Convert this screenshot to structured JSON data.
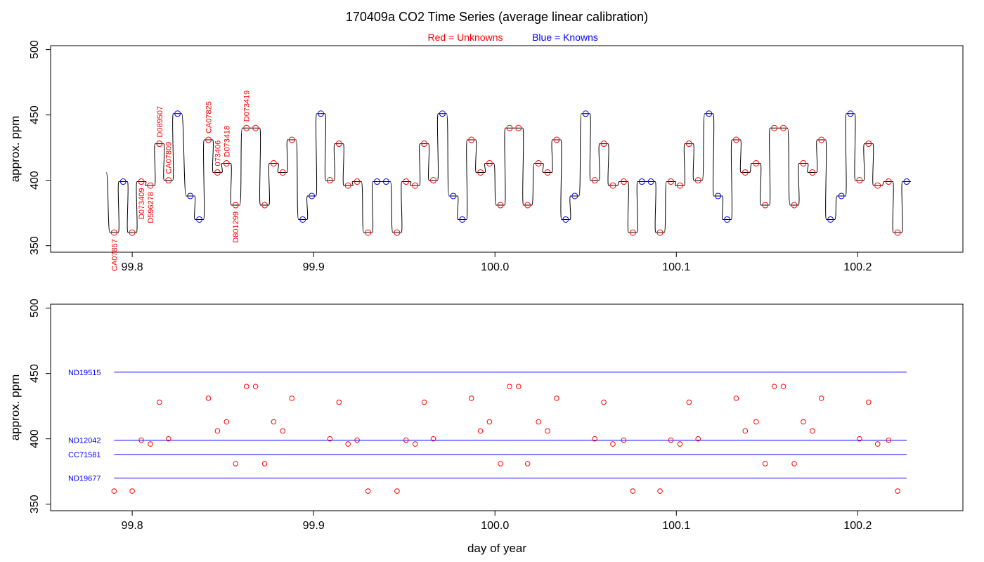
{
  "title": "170409a   CO2 Time Series (average linear calibration)",
  "subtitle_unknowns": "Red = Unknowns",
  "subtitle_knowns": "Blue = Knowns",
  "xlabel": "day of year",
  "colors": {
    "unknown": "#ff0000",
    "known": "#0000ff",
    "trace": "#000000",
    "axis": "#000000"
  },
  "chart_data": [
    {
      "type": "line",
      "ylabel": "approx. ppm",
      "xlim": [
        99.755,
        100.258
      ],
      "ylim": [
        345,
        503
      ],
      "x_ticks": [
        "99.8",
        "99.9",
        "100.0",
        "100.1",
        "100.2"
      ],
      "x_tick_values": [
        99.8,
        99.9,
        100.0,
        100.1,
        100.2
      ],
      "y_ticks": [
        "350",
        "400",
        "450",
        "500"
      ],
      "y_tick_values": [
        350,
        400,
        450,
        500
      ],
      "trace_start_value": 406,
      "samples": [
        {
          "x": 99.79,
          "y": 360,
          "known": false
        },
        {
          "x": 99.795,
          "y": 399,
          "known": true
        },
        {
          "x": 99.8,
          "y": 360,
          "known": false
        },
        {
          "x": 99.805,
          "y": 399,
          "known": false
        },
        {
          "x": 99.81,
          "y": 396,
          "known": false
        },
        {
          "x": 99.815,
          "y": 428,
          "known": false
        },
        {
          "x": 99.82,
          "y": 400,
          "known": false
        },
        {
          "x": 99.825,
          "y": 451,
          "known": true
        },
        {
          "x": 99.832,
          "y": 388,
          "known": true
        },
        {
          "x": 99.837,
          "y": 370,
          "known": true
        },
        {
          "x": 99.842,
          "y": 431,
          "known": false
        },
        {
          "x": 99.847,
          "y": 406,
          "known": false
        },
        {
          "x": 99.852,
          "y": 413,
          "known": false
        },
        {
          "x": 99.857,
          "y": 381,
          "known": false
        },
        {
          "x": 99.863,
          "y": 440,
          "known": false
        },
        {
          "x": 99.868,
          "y": 440,
          "known": false
        },
        {
          "x": 99.873,
          "y": 381,
          "known": false
        },
        {
          "x": 99.878,
          "y": 413,
          "known": false
        },
        {
          "x": 99.883,
          "y": 406,
          "known": false
        },
        {
          "x": 99.888,
          "y": 431,
          "known": false
        },
        {
          "x": 99.894,
          "y": 370,
          "known": true
        },
        {
          "x": 99.899,
          "y": 388,
          "known": true
        },
        {
          "x": 99.904,
          "y": 451,
          "known": true
        },
        {
          "x": 99.909,
          "y": 400,
          "known": false
        },
        {
          "x": 99.914,
          "y": 428,
          "known": false
        },
        {
          "x": 99.919,
          "y": 396,
          "known": false
        },
        {
          "x": 99.924,
          "y": 399,
          "known": false
        },
        {
          "x": 99.93,
          "y": 360,
          "known": false
        },
        {
          "x": 99.935,
          "y": 399,
          "known": true
        },
        {
          "x": 99.94,
          "y": 399,
          "known": true
        },
        {
          "x": 99.946,
          "y": 360,
          "known": false
        },
        {
          "x": 99.951,
          "y": 399,
          "known": false
        },
        {
          "x": 99.956,
          "y": 396,
          "known": false
        },
        {
          "x": 99.961,
          "y": 428,
          "known": false
        },
        {
          "x": 99.966,
          "y": 400,
          "known": false
        },
        {
          "x": 99.971,
          "y": 451,
          "known": true
        },
        {
          "x": 99.977,
          "y": 388,
          "known": true
        },
        {
          "x": 99.982,
          "y": 370,
          "known": true
        },
        {
          "x": 99.987,
          "y": 431,
          "known": false
        },
        {
          "x": 99.992,
          "y": 406,
          "known": false
        },
        {
          "x": 99.997,
          "y": 413,
          "known": false
        },
        {
          "x": 100.003,
          "y": 381,
          "known": false
        },
        {
          "x": 100.008,
          "y": 440,
          "known": false
        },
        {
          "x": 100.013,
          "y": 440,
          "known": false
        },
        {
          "x": 100.018,
          "y": 381,
          "known": false
        },
        {
          "x": 100.024,
          "y": 413,
          "known": false
        },
        {
          "x": 100.029,
          "y": 406,
          "known": false
        },
        {
          "x": 100.034,
          "y": 431,
          "known": false
        },
        {
          "x": 100.039,
          "y": 370,
          "known": true
        },
        {
          "x": 100.044,
          "y": 388,
          "known": true
        },
        {
          "x": 100.05,
          "y": 451,
          "known": true
        },
        {
          "x": 100.055,
          "y": 400,
          "known": false
        },
        {
          "x": 100.06,
          "y": 428,
          "known": false
        },
        {
          "x": 100.065,
          "y": 396,
          "known": false
        },
        {
          "x": 100.071,
          "y": 399,
          "known": false
        },
        {
          "x": 100.076,
          "y": 360,
          "known": false
        },
        {
          "x": 100.081,
          "y": 399,
          "known": true
        },
        {
          "x": 100.086,
          "y": 399,
          "known": true
        },
        {
          "x": 100.091,
          "y": 360,
          "known": false
        },
        {
          "x": 100.097,
          "y": 399,
          "known": false
        },
        {
          "x": 100.102,
          "y": 396,
          "known": false
        },
        {
          "x": 100.107,
          "y": 428,
          "known": false
        },
        {
          "x": 100.112,
          "y": 400,
          "known": false
        },
        {
          "x": 100.118,
          "y": 451,
          "known": true
        },
        {
          "x": 100.123,
          "y": 388,
          "known": true
        },
        {
          "x": 100.128,
          "y": 370,
          "known": true
        },
        {
          "x": 100.133,
          "y": 431,
          "known": false
        },
        {
          "x": 100.138,
          "y": 406,
          "known": false
        },
        {
          "x": 100.144,
          "y": 413,
          "known": false
        },
        {
          "x": 100.149,
          "y": 381,
          "known": false
        },
        {
          "x": 100.154,
          "y": 440,
          "known": false
        },
        {
          "x": 100.159,
          "y": 440,
          "known": false
        },
        {
          "x": 100.165,
          "y": 381,
          "known": false
        },
        {
          "x": 100.17,
          "y": 413,
          "known": false
        },
        {
          "x": 100.175,
          "y": 406,
          "known": false
        },
        {
          "x": 100.18,
          "y": 431,
          "known": false
        },
        {
          "x": 100.185,
          "y": 370,
          "known": true
        },
        {
          "x": 100.191,
          "y": 388,
          "known": true
        },
        {
          "x": 100.196,
          "y": 451,
          "known": true
        },
        {
          "x": 100.201,
          "y": 400,
          "known": false
        },
        {
          "x": 100.206,
          "y": 428,
          "known": false
        },
        {
          "x": 100.211,
          "y": 396,
          "known": false
        },
        {
          "x": 100.217,
          "y": 399,
          "known": false
        },
        {
          "x": 100.222,
          "y": 360,
          "known": false
        },
        {
          "x": 100.227,
          "y": 399,
          "known": true
        }
      ],
      "sample_labels": [
        {
          "text": "CA07857",
          "x": 99.79,
          "y": 360
        },
        {
          "text": "D073409",
          "x": 99.805,
          "y": 399
        },
        {
          "text": "D596278",
          "x": 99.81,
          "y": 396
        },
        {
          "text": "D089507",
          "x": 99.815,
          "y": 428
        },
        {
          "text": "CA07809",
          "x": 99.82,
          "y": 400
        },
        {
          "text": "CA07825",
          "x": 99.842,
          "y": 431
        },
        {
          "text": "073406",
          "x": 99.847,
          "y": 406
        },
        {
          "text": "D073418",
          "x": 99.852,
          "y": 413
        },
        {
          "text": "D801299",
          "x": 99.857,
          "y": 381
        },
        {
          "text": "D073419",
          "x": 99.863,
          "y": 440
        }
      ]
    },
    {
      "type": "scatter",
      "ylabel": "approx. ppm",
      "xlim": [
        99.755,
        100.258
      ],
      "ylim": [
        345,
        503
      ],
      "x_ticks": [
        "99.8",
        "99.9",
        "100.0",
        "100.1",
        "100.2"
      ],
      "x_tick_values": [
        99.8,
        99.9,
        100.0,
        100.1,
        100.2
      ],
      "y_ticks": [
        "350",
        "400",
        "450",
        "500"
      ],
      "y_tick_values": [
        350,
        400,
        450,
        500
      ],
      "reference_line_x_range": [
        99.79,
        100.227
      ],
      "reference_lines": [
        {
          "name": "ND19515",
          "value": 451
        },
        {
          "name": "ND12042",
          "value": 399
        },
        {
          "name": "CC71581",
          "value": 388
        },
        {
          "name": "ND19677",
          "value": 370
        }
      ]
    }
  ]
}
